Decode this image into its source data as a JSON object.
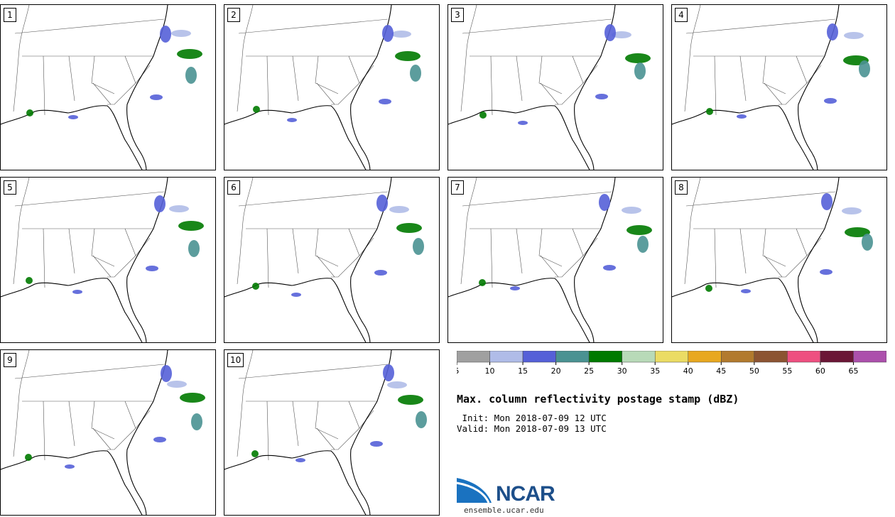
{
  "members": [
    {
      "label": "1"
    },
    {
      "label": "2"
    },
    {
      "label": "3"
    },
    {
      "label": "4"
    },
    {
      "label": "5"
    },
    {
      "label": "6"
    },
    {
      "label": "7"
    },
    {
      "label": "8"
    },
    {
      "label": "9"
    },
    {
      "label": "10"
    }
  ],
  "colorbar": {
    "colors": [
      "#a0a0a0",
      "#b0bce8",
      "#5560d8",
      "#4a9292",
      "#007a00",
      "#b8dab8",
      "#ebdc64",
      "#e8a820",
      "#b27a2e",
      "#8c5432",
      "#ee5080",
      "#6b1636",
      "#ac50ac"
    ],
    "ticks": [
      "5",
      "10",
      "15",
      "20",
      "25",
      "30",
      "35",
      "40",
      "45",
      "50",
      "55",
      "60",
      "65"
    ]
  },
  "title": "Max. column reflectivity postage stamp (dBZ)",
  "init_line": " Init: Mon 2018-07-09 12 UTC",
  "valid_line": "Valid: Mon 2018-07-09 13 UTC",
  "logo": {
    "name": "NCAR",
    "url": "ensemble.ucar.edu"
  }
}
